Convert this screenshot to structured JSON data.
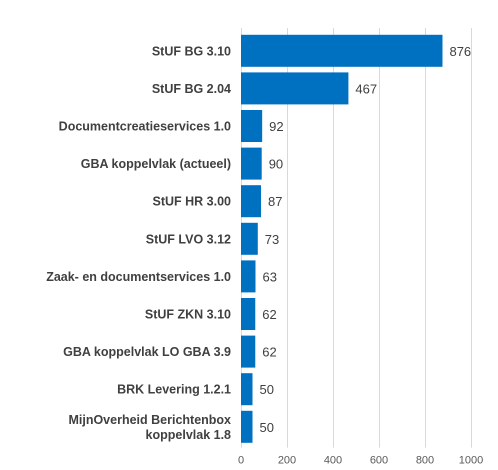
{
  "chart_data": {
    "type": "bar",
    "orientation": "horizontal",
    "title": "",
    "xlabel": "",
    "ylabel": "",
    "categories": [
      "StUF BG 3.10",
      "StUF BG 2.04",
      "Documentcreatieservices 1.0",
      "GBA koppelvlak (actueel)",
      "StUF HR 3.00",
      "StUF LVO 3.12",
      "Zaak- en documentservices 1.0",
      "StUF ZKN 3.10",
      "GBA koppelvlak LO GBA 3.9",
      "BRK Levering 1.2.1",
      "MijnOverheid Berichtenbox koppelvlak 1.8"
    ],
    "values": [
      876,
      467,
      92,
      90,
      87,
      73,
      63,
      62,
      62,
      50,
      50
    ],
    "xlim": [
      0,
      1000
    ],
    "xticks": [
      0,
      200,
      400,
      600,
      800,
      1000
    ],
    "grid": true,
    "bar_color": "#0070c0",
    "data_labels": true
  }
}
